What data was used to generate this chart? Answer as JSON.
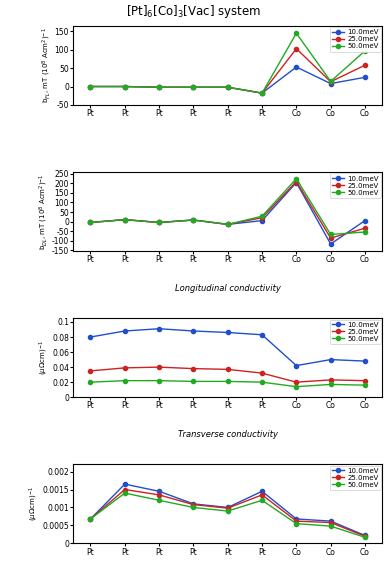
{
  "title": "[Pt]$_6$[Co]$_3$[Vac] system",
  "x_labels": [
    "Pt",
    "Pt",
    "Pt",
    "Pt",
    "Pt",
    "Pt",
    "Co",
    "Co",
    "Co"
  ],
  "x_positions": [
    0,
    1,
    2,
    3,
    4,
    5,
    6,
    7,
    8
  ],
  "energies": [
    "10.0meV",
    "25.0meV",
    "50.0meV"
  ],
  "colors": [
    "#1f4fcc",
    "#cc2222",
    "#22aa22"
  ],
  "panel1": {
    "ylabel": "b$_{FL}$, mT (10$^8$ Acm$^2$)$^{-1}$",
    "ylim": [
      -50,
      165
    ],
    "yticks": [
      -50,
      0,
      50,
      100,
      150
    ],
    "data": {
      "10.0meV": [
        0,
        0,
        -2,
        -2,
        -2,
        -18,
        53,
        8,
        25
      ],
      "25.0meV": [
        0,
        0,
        -2,
        -2,
        -2,
        -18,
        103,
        13,
        58
      ],
      "50.0meV": [
        0,
        0,
        -2,
        -2,
        -2,
        -18,
        145,
        14,
        97
      ]
    }
  },
  "panel2": {
    "ylabel": "b$_{DL}$, mT (10$^8$ Acm$^2$)$^{-1}$",
    "ylim": [
      -155,
      260
    ],
    "yticks": [
      -150,
      -100,
      -50,
      0,
      50,
      100,
      150,
      200,
      250
    ],
    "label_below": "Longitudinal conductivity",
    "data": {
      "10.0meV": [
        -5,
        10,
        -5,
        8,
        -15,
        5,
        205,
        -118,
        5
      ],
      "25.0meV": [
        -5,
        10,
        -5,
        8,
        -15,
        20,
        210,
        -87,
        -35
      ],
      "50.0meV": [
        -5,
        10,
        -5,
        8,
        -15,
        28,
        225,
        -68,
        -55
      ]
    }
  },
  "panel3": {
    "ylabel": "($\\mu\\Omega$cm)$^{-1}$",
    "ylim": [
      0,
      0.105
    ],
    "yticks": [
      0,
      0.02,
      0.04,
      0.06,
      0.08,
      0.1
    ],
    "label_below": "Transverse conductivity",
    "data": {
      "10.0meV": [
        0.08,
        0.088,
        0.091,
        0.088,
        0.086,
        0.083,
        0.042,
        0.05,
        0.048
      ],
      "25.0meV": [
        0.035,
        0.039,
        0.04,
        0.038,
        0.037,
        0.032,
        0.02,
        0.023,
        0.022
      ],
      "50.0meV": [
        0.02,
        0.022,
        0.022,
        0.021,
        0.021,
        0.02,
        0.014,
        0.017,
        0.016
      ]
    }
  },
  "panel4": {
    "ylabel": "($\\mu\\Omega$cm)$^{-1}$",
    "ylim": [
      0,
      0.0022
    ],
    "yticks": [
      0,
      0.0005,
      0.001,
      0.0015,
      0.002
    ],
    "data": {
      "10.0meV": [
        0.00068,
        0.00165,
        0.00145,
        0.0011,
        0.001,
        0.00145,
        0.00068,
        0.00062,
        0.00022
      ],
      "25.0meV": [
        0.00068,
        0.0015,
        0.00135,
        0.00108,
        0.00098,
        0.00135,
        0.00062,
        0.00058,
        0.0002
      ],
      "50.0meV": [
        0.00068,
        0.0014,
        0.0012,
        0.001,
        0.0009,
        0.0012,
        0.00055,
        0.00048,
        0.00017
      ]
    }
  },
  "marker": "o",
  "markersize": 3,
  "linewidth": 1.0
}
